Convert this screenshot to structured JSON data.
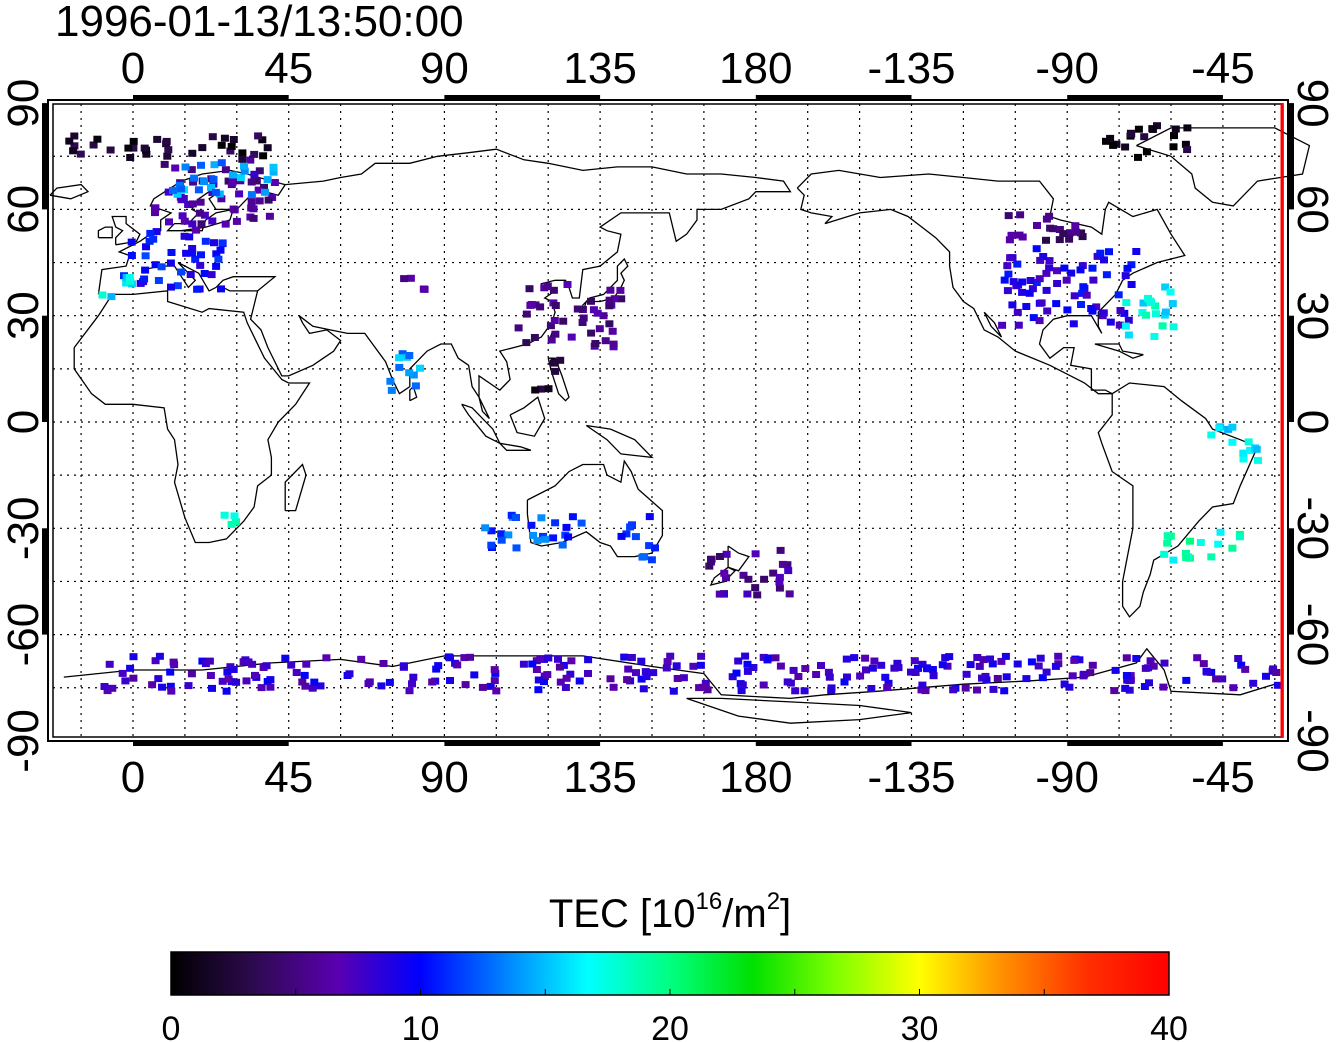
{
  "timestamp": "1996-01-13/13:50:00",
  "colorbar": {
    "title_prefix": "TEC  [10",
    "title_exp1": "16",
    "title_mid": "/m",
    "title_exp2": "2",
    "title_suffix": "]",
    "ticks": [
      0,
      10,
      20,
      30,
      40
    ],
    "range": [
      0,
      40
    ],
    "colormap": [
      "#000000",
      "#2d0a4f",
      "#5a00b0",
      "#0000ff",
      "#0080ff",
      "#00ffff",
      "#00ff80",
      "#00e000",
      "#80ff00",
      "#ffff00",
      "#ff9000",
      "#ff3000",
      "#ff0000"
    ]
  },
  "map": {
    "lon_labels": [
      "0",
      "45",
      "90",
      "135",
      "180",
      "-135",
      "-90",
      "-45"
    ],
    "lat_labels": [
      "90",
      "60",
      "30",
      "0",
      "-30",
      "-60",
      "-90"
    ],
    "lat_labels_right": [
      "90",
      "60",
      "30",
      "0",
      "-30",
      "-60",
      "-90"
    ],
    "grid": "dotted, every 15 degrees",
    "terminator_color": "#ff0000"
  },
  "chart_data": {
    "type": "heatmap",
    "xlabel": "",
    "ylabel": "",
    "value_label": "TEC",
    "xlim": [
      -20,
      330
    ],
    "ylim": [
      -90,
      90
    ],
    "regions": [
      {
        "lon": [
          5,
          40
        ],
        "lat": [
          55,
          75
        ],
        "tec": 6
      },
      {
        "lon": [
          -5,
          25
        ],
        "lat": [
          38,
          55
        ],
        "tec": 10
      },
      {
        "lon": [
          -10,
          0
        ],
        "lat": [
          36,
          44
        ],
        "tec": 16
      },
      {
        "lon": [
          10,
          40
        ],
        "lat": [
          65,
          75
        ],
        "tec": 14
      },
      {
        "lon": [
          -20,
          40
        ],
        "lat": [
          75,
          82
        ],
        "tec": 2
      },
      {
        "lon": [
          73,
          82
        ],
        "lat": [
          8,
          22
        ],
        "tec": 14
      },
      {
        "lon": [
          75,
          85
        ],
        "lat": [
          38,
          42
        ],
        "tec": 6
      },
      {
        "lon": [
          110,
          140
        ],
        "lat": [
          22,
          40
        ],
        "tec": 5
      },
      {
        "lon": [
          115,
          123
        ],
        "lat": [
          10,
          20
        ],
        "tec": 1
      },
      {
        "lon": [
          250,
          290
        ],
        "lat": [
          28,
          50
        ],
        "tec": 9
      },
      {
        "lon": [
          285,
          300
        ],
        "lat": [
          25,
          40
        ],
        "tec": 17
      },
      {
        "lon": [
          250,
          275
        ],
        "lat": [
          50,
          60
        ],
        "tec": 5
      },
      {
        "lon": [
          280,
          305
        ],
        "lat": [
          75,
          85
        ],
        "tec": 1
      },
      {
        "lon": [
          100,
          130
        ],
        "lat": [
          -35,
          -25
        ],
        "tec": 12
      },
      {
        "lon": [
          140,
          150
        ],
        "lat": [
          -38,
          -25
        ],
        "tec": 11
      },
      {
        "lon": [
          165,
          190
        ],
        "lat": [
          -48,
          -35
        ],
        "tec": 6
      },
      {
        "lon": [
          -10,
          330
        ],
        "lat": [
          -75,
          -65
        ],
        "tec": 8
      },
      {
        "lon": [
          295,
          320
        ],
        "lat": [
          -38,
          -30
        ],
        "tec": 18
      },
      {
        "lon": [
          310,
          325
        ],
        "lat": [
          -10,
          0
        ],
        "tec": 16
      },
      {
        "lon": [
          25,
          32
        ],
        "lat": [
          -28,
          -25
        ],
        "tec": 19
      }
    ]
  }
}
